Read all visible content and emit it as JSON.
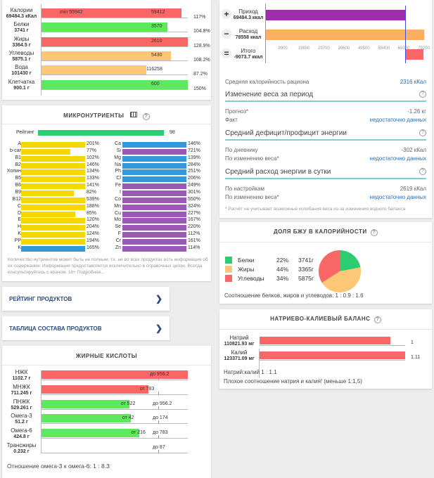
{
  "macros": {
    "rows": [
      {
        "name": "Калории",
        "amount": "69484.3 кКал",
        "min_label": "min 55942",
        "norm": "59412",
        "pct_label": "117%",
        "pct": 117,
        "color": "#f86666"
      },
      {
        "name": "Белки",
        "amount": "3741 г",
        "min_label": "",
        "norm": "3570",
        "pct_label": "104.8%",
        "pct": 104.8,
        "color": "#5ee85e"
      },
      {
        "name": "Жиры",
        "amount": "3364.5 г",
        "min_label": "",
        "norm": "2610",
        "pct_label": "128.9%",
        "pct": 128.9,
        "color": "#f86666"
      },
      {
        "name": "Углеводы",
        "amount": "5875.1 г",
        "min_label": "",
        "norm": "5430",
        "pct_label": "108.2%",
        "pct": 108.2,
        "color": "#fdc875"
      },
      {
        "name": "Вода",
        "amount": "101430 г",
        "min_label": "",
        "norm": "116258",
        "pct_label": "87.2%",
        "pct": 87.2,
        "color": "#fdc875"
      },
      {
        "name": "Клетчатка",
        "amount": "900.1 г",
        "min_label": "",
        "norm": "600",
        "pct_label": "150%",
        "pct": 150,
        "color": "#5ee85e"
      }
    ]
  },
  "micro": {
    "title": "МИКРОНУТРИЕНТЫ",
    "table_icon": "table-icon",
    "help_icon": "question-circle-icon",
    "rating": {
      "label": "Рейтинг",
      "value": "98",
      "pct": 98,
      "color": "#2ecc71"
    },
    "left": [
      {
        "n": "A",
        "v": "201%",
        "p": 201,
        "c": "#f5d800"
      },
      {
        "n": "b-car",
        "v": "77%",
        "p": 77,
        "c": "#f5d800"
      },
      {
        "n": "B1",
        "v": "102%",
        "p": 102,
        "c": "#f5d800"
      },
      {
        "n": "B2",
        "v": "146%",
        "p": 146,
        "c": "#f5d800"
      },
      {
        "n": "Холин",
        "v": "134%",
        "p": 134,
        "c": "#f5d800"
      },
      {
        "n": "B5",
        "v": "133%",
        "p": 133,
        "c": "#f5d800"
      },
      {
        "n": "B6",
        "v": "141%",
        "p": 141,
        "c": "#f5d800"
      },
      {
        "n": "B9",
        "v": "82%",
        "p": 82,
        "c": "#f5d800"
      },
      {
        "n": "B12",
        "v": "539%",
        "p": 539,
        "c": "#f5d800"
      },
      {
        "n": "C",
        "v": "188%",
        "p": 188,
        "c": "#f5d800"
      },
      {
        "n": "D",
        "v": "85%",
        "p": 85,
        "c": "#f5d800"
      },
      {
        "n": "E",
        "v": "120%",
        "p": 120,
        "c": "#f5d800"
      },
      {
        "n": "H",
        "v": "204%",
        "p": 204,
        "c": "#f5d800"
      },
      {
        "n": "K",
        "v": "124%",
        "p": 124,
        "c": "#f5d800"
      },
      {
        "n": "PP",
        "v": "194%",
        "p": 194,
        "c": "#f5d800"
      },
      {
        "n": "K",
        "v": "165%",
        "p": 165,
        "c": "#3498db"
      }
    ],
    "right": [
      {
        "n": "Ca",
        "v": "146%",
        "p": 146,
        "c": "#3498db"
      },
      {
        "n": "Si",
        "v": "721%",
        "p": 721,
        "c": "#9b59b6"
      },
      {
        "n": "Mg",
        "v": "139%",
        "p": 139,
        "c": "#3498db"
      },
      {
        "n": "Na",
        "v": "284%",
        "p": 284,
        "c": "#3498db"
      },
      {
        "n": "Ph",
        "v": "251%",
        "p": 251,
        "c": "#3498db"
      },
      {
        "n": "Cl",
        "v": "206%",
        "p": 206,
        "c": "#3498db"
      },
      {
        "n": "Fe",
        "v": "249%",
        "p": 249,
        "c": "#9b59b6"
      },
      {
        "n": "I",
        "v": "301%",
        "p": 301,
        "c": "#9b59b6"
      },
      {
        "n": "Co",
        "v": "550%",
        "p": 550,
        "c": "#9b59b6"
      },
      {
        "n": "Mn",
        "v": "324%",
        "p": 324,
        "c": "#9b59b6"
      },
      {
        "n": "Cu",
        "v": "227%",
        "p": 227,
        "c": "#9b59b6"
      },
      {
        "n": "Mo",
        "v": "167%",
        "p": 167,
        "c": "#9b59b6"
      },
      {
        "n": "Se",
        "v": "220%",
        "p": 220,
        "c": "#9b59b6"
      },
      {
        "n": "F",
        "v": "112%",
        "p": 112,
        "c": "#9b59b6"
      },
      {
        "n": "Cr",
        "v": "161%",
        "p": 161,
        "c": "#9b59b6"
      },
      {
        "n": "Zn",
        "v": "114%",
        "p": 114,
        "c": "#9b59b6"
      }
    ],
    "note": "Количество нутриентов может быть не полным, т.к. не во всех продуктах есть информация об их содержании. Информация предоставляется исключительно в справочных целях. Всегда консультируйтесь с врачом. 18+ Подробнее..."
  },
  "links": [
    {
      "label": "РЕЙТИНГ ПРОДУКТОВ"
    },
    {
      "label": "ТАБЛИЦА СОСТАВА ПРОДУКТОВ"
    }
  ],
  "fatty": {
    "title": "ЖИРНЫЕ КИСЛОТЫ",
    "rows": [
      {
        "name": "НЖК",
        "amount": "1102.7 г",
        "from": "",
        "to": "до 956.2",
        "fill": 1.0,
        "color": "#f86666"
      },
      {
        "name": "МНЖК",
        "amount": "711.245 г",
        "from": "от 783",
        "to": "",
        "fill": 0.73,
        "color": "#f86666"
      },
      {
        "name": "ПНЖК",
        "amount": "529.261 г",
        "from": "от 522",
        "to": "до 956.2",
        "fill": 0.6,
        "color": "#5ee85e"
      },
      {
        "name": "Омега-3",
        "amount": "51.2 г",
        "from": "от 42",
        "to": "до 174",
        "fill": 0.61,
        "color": "#5ee85e"
      },
      {
        "name": "Омега-6",
        "amount": "424.8 г",
        "from": "от 216",
        "to": "до 783",
        "fill": 0.67,
        "color": "#5ee85e"
      },
      {
        "name": "Трансжиры",
        "amount": "0.232 г",
        "from": "",
        "to": "до 87",
        "fill": 0,
        "color": "#5ee85e"
      }
    ],
    "ratio": "Отношение омега-3 к омега-6: 1 : 8.3"
  },
  "energy": {
    "rows": [
      {
        "sign": "+",
        "name": "Приход",
        "amount": "69484.3 ккал",
        "value": 69484.3,
        "color": "#9b30a8"
      },
      {
        "sign": "−",
        "name": "Расход",
        "amount": "78558 ккал",
        "value": 78558,
        "color": "#fdae61"
      },
      {
        "sign": "=",
        "name": "Итого",
        "amount": "-9073.7 ккал",
        "value": -9073.7,
        "color": "#f86666"
      }
    ],
    "ticks": [
      "9900",
      "19800",
      "29700",
      "39600",
      "49500",
      "59400",
      "69300",
      "79200"
    ],
    "avg_label": "Средняя калорийность рациона",
    "avg_value": "2316 кКал",
    "sections": [
      {
        "title": "Изменение веса за период",
        "rows": [
          {
            "k": "Прогноз*",
            "v": "-1.26 кг",
            "blue": false
          },
          {
            "k": "Факт",
            "v": "недостаточно данных",
            "blue": true
          }
        ]
      },
      {
        "title": "Средний дефицит/профицит энергии",
        "rows": [
          {
            "k": "По дневнику",
            "v": "-302 кКал",
            "blue": false
          },
          {
            "k": "По изменению веса*",
            "v": "недостаточно данных",
            "blue": true
          }
        ]
      },
      {
        "title": "Средний расход энергии в сутки",
        "rows": [
          {
            "k": "По настройкам",
            "v": "2619 кКал",
            "blue": false
          },
          {
            "k": "По изменению веса*",
            "v": "недостаточно данных",
            "blue": true
          }
        ]
      }
    ],
    "footnote": "* Расчёт не учитывает возможные колебания веса из-за изменения водного баланса"
  },
  "bju": {
    "title": "ДОЛЯ БЖУ В КАЛОРИЙНОСТИ",
    "items": [
      {
        "name": "Белки",
        "pct_label": "22%",
        "grams": "3741г",
        "pct": 22,
        "color": "#2ecc71"
      },
      {
        "name": "Жиры",
        "pct_label": "44%",
        "grams": "3365г",
        "pct": 44,
        "color": "#fdc875"
      },
      {
        "name": "Углеводы",
        "pct_label": "34%",
        "grams": "5875г",
        "pct": 34,
        "color": "#f86666"
      }
    ],
    "ratio": "Соотношение белков, жиров и углеводов: 1 : 0.9 : 1.6"
  },
  "nak": {
    "title": "НАТРИЕВО-КАЛИЕВЫЙ БАЛАНС",
    "rows": [
      {
        "name": "Натрий",
        "amount": "110821.93 мг",
        "ratio": "1",
        "fill": 0.9
      },
      {
        "name": "Калий",
        "amount": "123371.09 мг",
        "ratio": "1.11",
        "fill": 1.0
      }
    ],
    "ratio": "Натрий:калий 1 : 1.1",
    "warning": "Плохое соотношение натрия и калия! (меньше 1:1,5)",
    "color": "#f86666"
  }
}
